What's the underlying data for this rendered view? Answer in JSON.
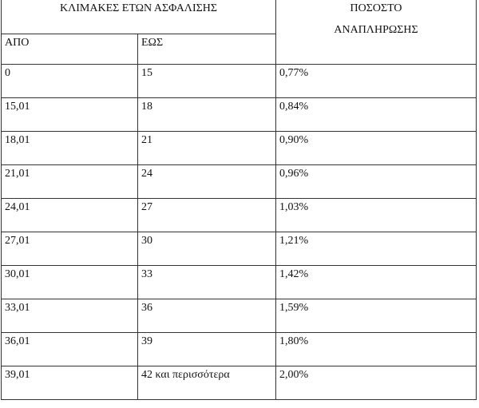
{
  "header": {
    "group": "ΚΛΙΜΑΚΕΣ ΕΤΩΝ ΑΣΦΑΛΙΣΗΣ",
    "from": "ΑΠΟ",
    "to": "ΕΩΣ",
    "rate_line1": "ΠΟΣΟΣΤΟ",
    "rate_line2": "ΑΝΑΠΛΗΡΩΣΗΣ"
  },
  "rows": [
    {
      "from": "0",
      "to": "15",
      "rate": "0,77%"
    },
    {
      "from": "15,01",
      "to": "18",
      "rate": "0,84%"
    },
    {
      "from": "18,01",
      "to": "21",
      "rate": "0,90%"
    },
    {
      "from": "21,01",
      "to": "24",
      "rate": "0,96%"
    },
    {
      "from": "24,01",
      "to": "27",
      "rate": "1,03%"
    },
    {
      "from": "27,01",
      "to": "30",
      "rate": "1,21%"
    },
    {
      "from": "30,01",
      "to": "33",
      "rate": "1,42%"
    },
    {
      "from": "33,01",
      "to": "36",
      "rate": "1,59%"
    },
    {
      "from": "36,01",
      "to": "39",
      "rate": "1,80%"
    },
    {
      "from": "39,01",
      "to": "42 και περισσότερα",
      "rate": "2,00%"
    }
  ]
}
